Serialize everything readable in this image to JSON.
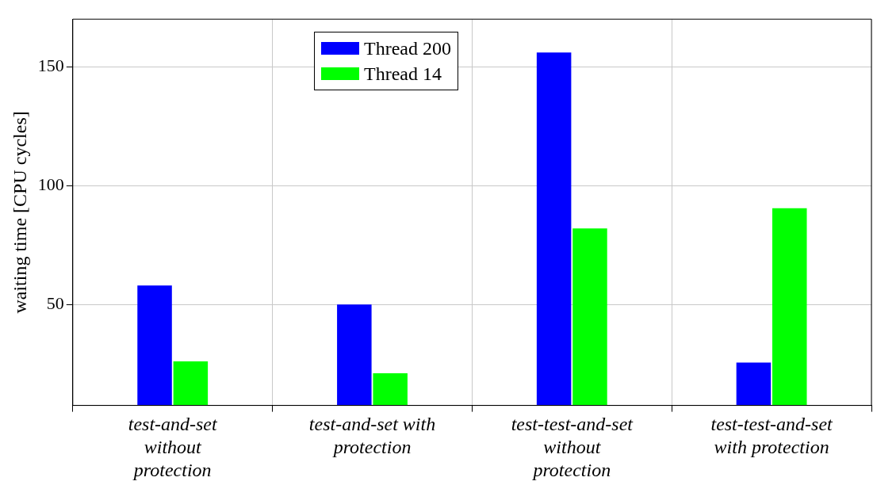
{
  "chart_data": {
    "type": "bar",
    "ylabel": "waiting time [CPU cycles]",
    "categories": [
      "test-and-set without protection",
      "test-and-set with protection",
      "test-test-and-set without protection",
      "test-test-and-set with protection"
    ],
    "series": [
      {
        "name": "Thread 200",
        "color": "#0000ff",
        "values": [
          58,
          50,
          156,
          25.5
        ]
      },
      {
        "name": "Thread 14",
        "color": "#00ff00",
        "values": [
          26,
          21,
          82,
          90.5
        ]
      }
    ],
    "ylim": [
      7.5,
      170
    ],
    "yticks": [
      50,
      100,
      150
    ],
    "grid": true,
    "legend": "top left"
  }
}
